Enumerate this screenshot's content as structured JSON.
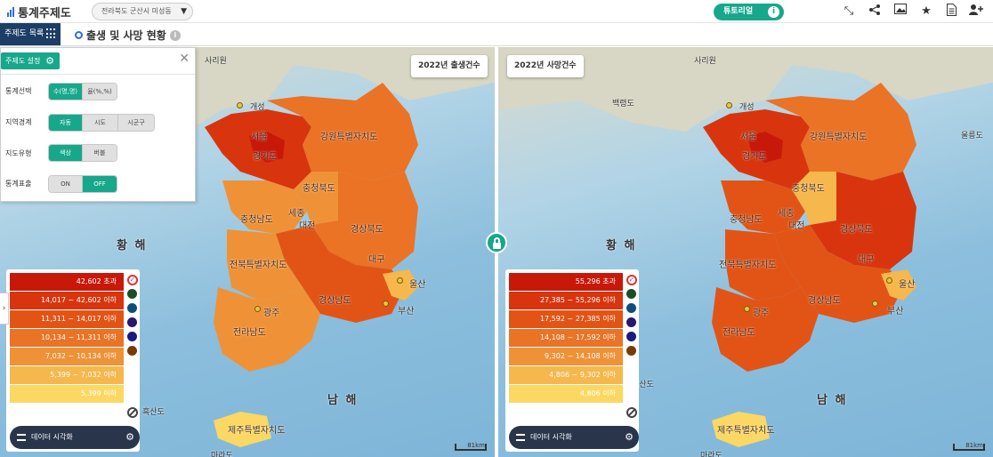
{
  "header": {
    "logo_text": "통계주제도",
    "region_select": "전라북도 군산시 미성동",
    "tutorial_label": "튜토리얼",
    "tools": [
      "collapse-icon",
      "share-icon",
      "image-icon",
      "star-icon",
      "document-icon",
      "person-add-icon"
    ]
  },
  "subheader": {
    "theme_list_label": "주제도 목록",
    "page_title": "출생 및 사망 현황"
  },
  "settings": {
    "tab_label": "주제도 설정",
    "stat_label": "통계선택",
    "stat_options": [
      "수(명,명)",
      "율(%,%)"
    ],
    "stat_selected": 0,
    "boundary_label": "지역경계",
    "boundary_options": [
      "자동",
      "시도",
      "시군구"
    ],
    "boundary_selected": 0,
    "type_label": "지도유형",
    "type_options": [
      "색상",
      "버블"
    ],
    "type_selected": 0,
    "display_label": "통계표출",
    "display_options": [
      "ON",
      "OFF"
    ],
    "display_selected": 1
  },
  "maps": [
    {
      "title": "2022년 출생건수",
      "legend": [
        {
          "label": "42,602 초과",
          "color": "#c8180a"
        },
        {
          "label": "14,017 ~ 42,602 이하",
          "color": "#d8350e"
        },
        {
          "label": "11,311 ~ 14,017 이하",
          "color": "#e25416"
        },
        {
          "label": "10,134 ~ 11,311 이하",
          "color": "#ea7326"
        },
        {
          "label": "7,032 ~ 10,134 이하",
          "color": "#ef9237"
        },
        {
          "label": "5,399 ~ 7,032 이하",
          "color": "#f6b74c"
        },
        {
          "label": "5,399 이하",
          "color": "#fbd863"
        }
      ]
    },
    {
      "title": "2022년 사망건수",
      "legend": [
        {
          "label": "55,296 초과",
          "color": "#c8180a"
        },
        {
          "label": "27,385 ~ 55,296 이하",
          "color": "#d8350e"
        },
        {
          "label": "17,592 ~ 27,385 이하",
          "color": "#e25416"
        },
        {
          "label": "14,108 ~ 17,592 이하",
          "color": "#ea7326"
        },
        {
          "label": "9,302 ~ 14,108 이하",
          "color": "#ef9237"
        },
        {
          "label": "4,806 ~ 9,302 이하",
          "color": "#f6b74c"
        },
        {
          "label": "4,806 이하",
          "color": "#fbd863"
        }
      ]
    }
  ],
  "legend_palette_colors": [
    "#1e4d24",
    "#0e4d7a",
    "#28176e",
    "#1a1a80",
    "#7a3a08"
  ],
  "legend_footer_label": "데이터 시각화",
  "map_labels": {
    "sea_yellow": "황 해",
    "sea_south": "남 해",
    "sariwon": "사리원",
    "gaeseong": "개성",
    "baengnyeong": "백령도",
    "ulleung": "울릉도",
    "jeju": "제주특별자치도",
    "gangwon": "강원특별자치도",
    "gyeonggi": "경기도",
    "seoul": "서울",
    "chungbuk": "충청북도",
    "chungnam": "충청남도",
    "sejong": "세종",
    "daejeon": "대전",
    "gyeongbuk": "경상북도",
    "gyeongnam": "경상남도",
    "daegu": "대구",
    "ulsan": "울산",
    "busan": "부산",
    "jeonbuk": "전북특별자치도",
    "jeonnam": "전라남도",
    "gwangju": "광주",
    "heuksan": "흑산도",
    "marado": "마라도",
    "scale": "81km"
  }
}
